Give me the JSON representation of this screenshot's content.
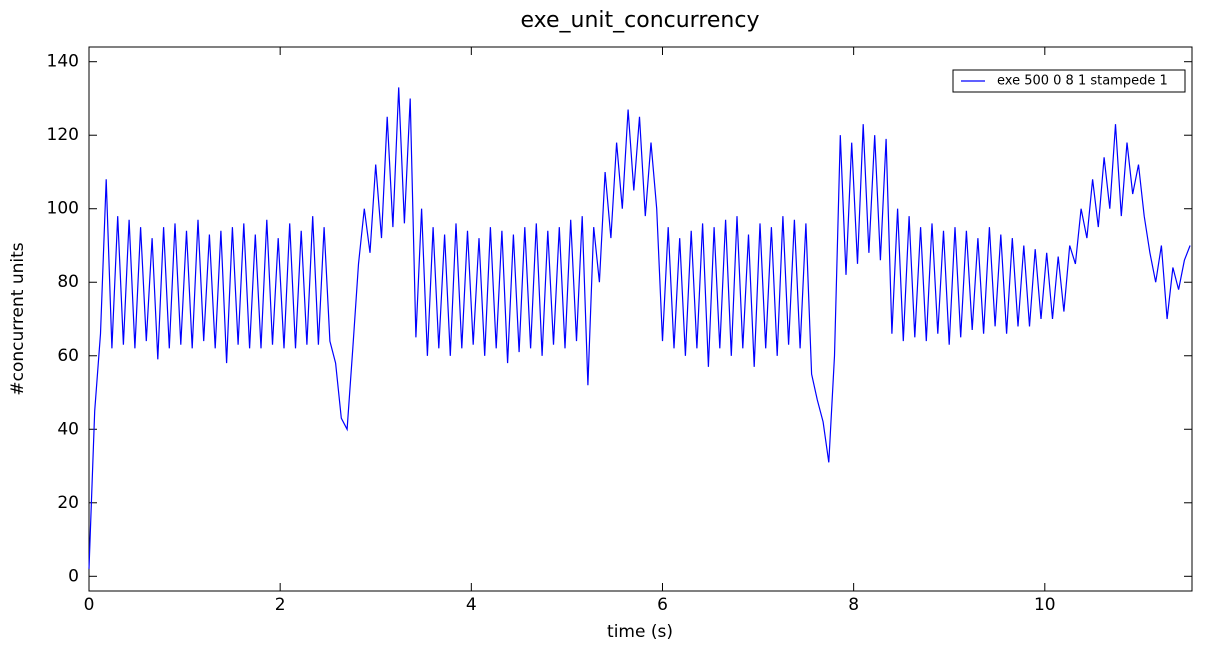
{
  "chart_data": {
    "type": "line",
    "title": "exe_unit_concurrency",
    "x_label": "time (s)",
    "y_label": "#concurrent units",
    "xlim": [
      0,
      11.54
    ],
    "ylim": [
      -4,
      144
    ],
    "xticks": [
      0,
      2,
      4,
      6,
      8,
      10
    ],
    "yticks": [
      0,
      20,
      40,
      60,
      80,
      100,
      120,
      140
    ],
    "grid": false,
    "legend": "upper right",
    "x": [
      0,
      0.06,
      0.12,
      0.18,
      0.24,
      0.3,
      0.36,
      0.42,
      0.48,
      0.54,
      0.6,
      0.66,
      0.72,
      0.78,
      0.84,
      0.9,
      0.96,
      1.02,
      1.08,
      1.14,
      1.2,
      1.26,
      1.32,
      1.38,
      1.44,
      1.5,
      1.56,
      1.62,
      1.68,
      1.74,
      1.8,
      1.86,
      1.92,
      1.98,
      2.04,
      2.1,
      2.16,
      2.22,
      2.28,
      2.34,
      2.4,
      2.46,
      2.52,
      2.58,
      2.64,
      2.7,
      2.76,
      2.82,
      2.88,
      2.94,
      3.0,
      3.06,
      3.12,
      3.18,
      3.24,
      3.3,
      3.36,
      3.42,
      3.48,
      3.54,
      3.6,
      3.66,
      3.72,
      3.78,
      3.84,
      3.9,
      3.96,
      4.02,
      4.08,
      4.14,
      4.2,
      4.26,
      4.32,
      4.38,
      4.44,
      4.5,
      4.56,
      4.62,
      4.68,
      4.74,
      4.8,
      4.86,
      4.92,
      4.98,
      5.04,
      5.1,
      5.16,
      5.22,
      5.28,
      5.34,
      5.4,
      5.46,
      5.52,
      5.58,
      5.64,
      5.7,
      5.76,
      5.82,
      5.88,
      5.94,
      6.0,
      6.06,
      6.12,
      6.18,
      6.24,
      6.3,
      6.36,
      6.42,
      6.48,
      6.54,
      6.6,
      6.66,
      6.72,
      6.78,
      6.84,
      6.9,
      6.96,
      7.02,
      7.08,
      7.14,
      7.2,
      7.26,
      7.32,
      7.38,
      7.44,
      7.5,
      7.56,
      7.62,
      7.68,
      7.74,
      7.8,
      7.86,
      7.92,
      7.98,
      8.04,
      8.1,
      8.16,
      8.22,
      8.28,
      8.34,
      8.4,
      8.46,
      8.52,
      8.58,
      8.64,
      8.7,
      8.76,
      8.82,
      8.88,
      8.94,
      9.0,
      9.06,
      9.12,
      9.18,
      9.24,
      9.3,
      9.36,
      9.42,
      9.48,
      9.54,
      9.6,
      9.66,
      9.72,
      9.78,
      9.84,
      9.9,
      9.96,
      10.02,
      10.08,
      10.14,
      10.2,
      10.26,
      10.32,
      10.38,
      10.44,
      10.5,
      10.56,
      10.62,
      10.68,
      10.74,
      10.8,
      10.86,
      10.92,
      10.98,
      11.04,
      11.1,
      11.16,
      11.22,
      11.28,
      11.34,
      11.4,
      11.46,
      11.52
    ],
    "series": [
      {
        "name": "exe 500 0 8 1 stampede 1",
        "color": "#0000ff",
        "values": [
          2,
          45,
          66,
          108,
          62,
          98,
          63,
          97,
          62,
          95,
          64,
          92,
          59,
          95,
          62,
          96,
          63,
          94,
          62,
          97,
          64,
          93,
          62,
          94,
          58,
          95,
          63,
          96,
          62,
          93,
          62,
          97,
          63,
          92,
          62,
          96,
          62,
          94,
          63,
          98,
          63,
          95,
          64,
          58,
          43,
          40,
          62,
          85,
          100,
          88,
          112,
          92,
          125,
          95,
          133,
          96,
          130,
          65,
          100,
          60,
          95,
          62,
          93,
          60,
          96,
          62,
          94,
          63,
          92,
          60,
          95,
          62,
          94,
          58,
          93,
          61,
          95,
          62,
          96,
          60,
          94,
          63,
          95,
          62,
          97,
          64,
          98,
          52,
          95,
          80,
          110,
          92,
          118,
          100,
          127,
          105,
          125,
          98,
          118,
          100,
          64,
          95,
          62,
          92,
          60,
          94,
          62,
          96,
          57,
          95,
          62,
          97,
          60,
          98,
          62,
          93,
          57,
          96,
          62,
          95,
          60,
          98,
          63,
          97,
          62,
          96,
          55,
          48,
          42,
          31,
          60,
          120,
          82,
          118,
          85,
          123,
          88,
          120,
          86,
          119,
          66,
          100,
          64,
          98,
          65,
          95,
          64,
          96,
          66,
          94,
          63,
          95,
          65,
          94,
          67,
          92,
          66,
          95,
          68,
          93,
          66,
          92,
          68,
          90,
          68,
          89,
          70,
          88,
          70,
          87,
          72,
          90,
          85,
          100,
          92,
          108,
          95,
          114,
          100,
          123,
          98,
          118,
          104,
          112,
          98,
          88,
          80,
          90,
          70,
          84,
          78,
          86,
          90
        ]
      }
    ]
  }
}
